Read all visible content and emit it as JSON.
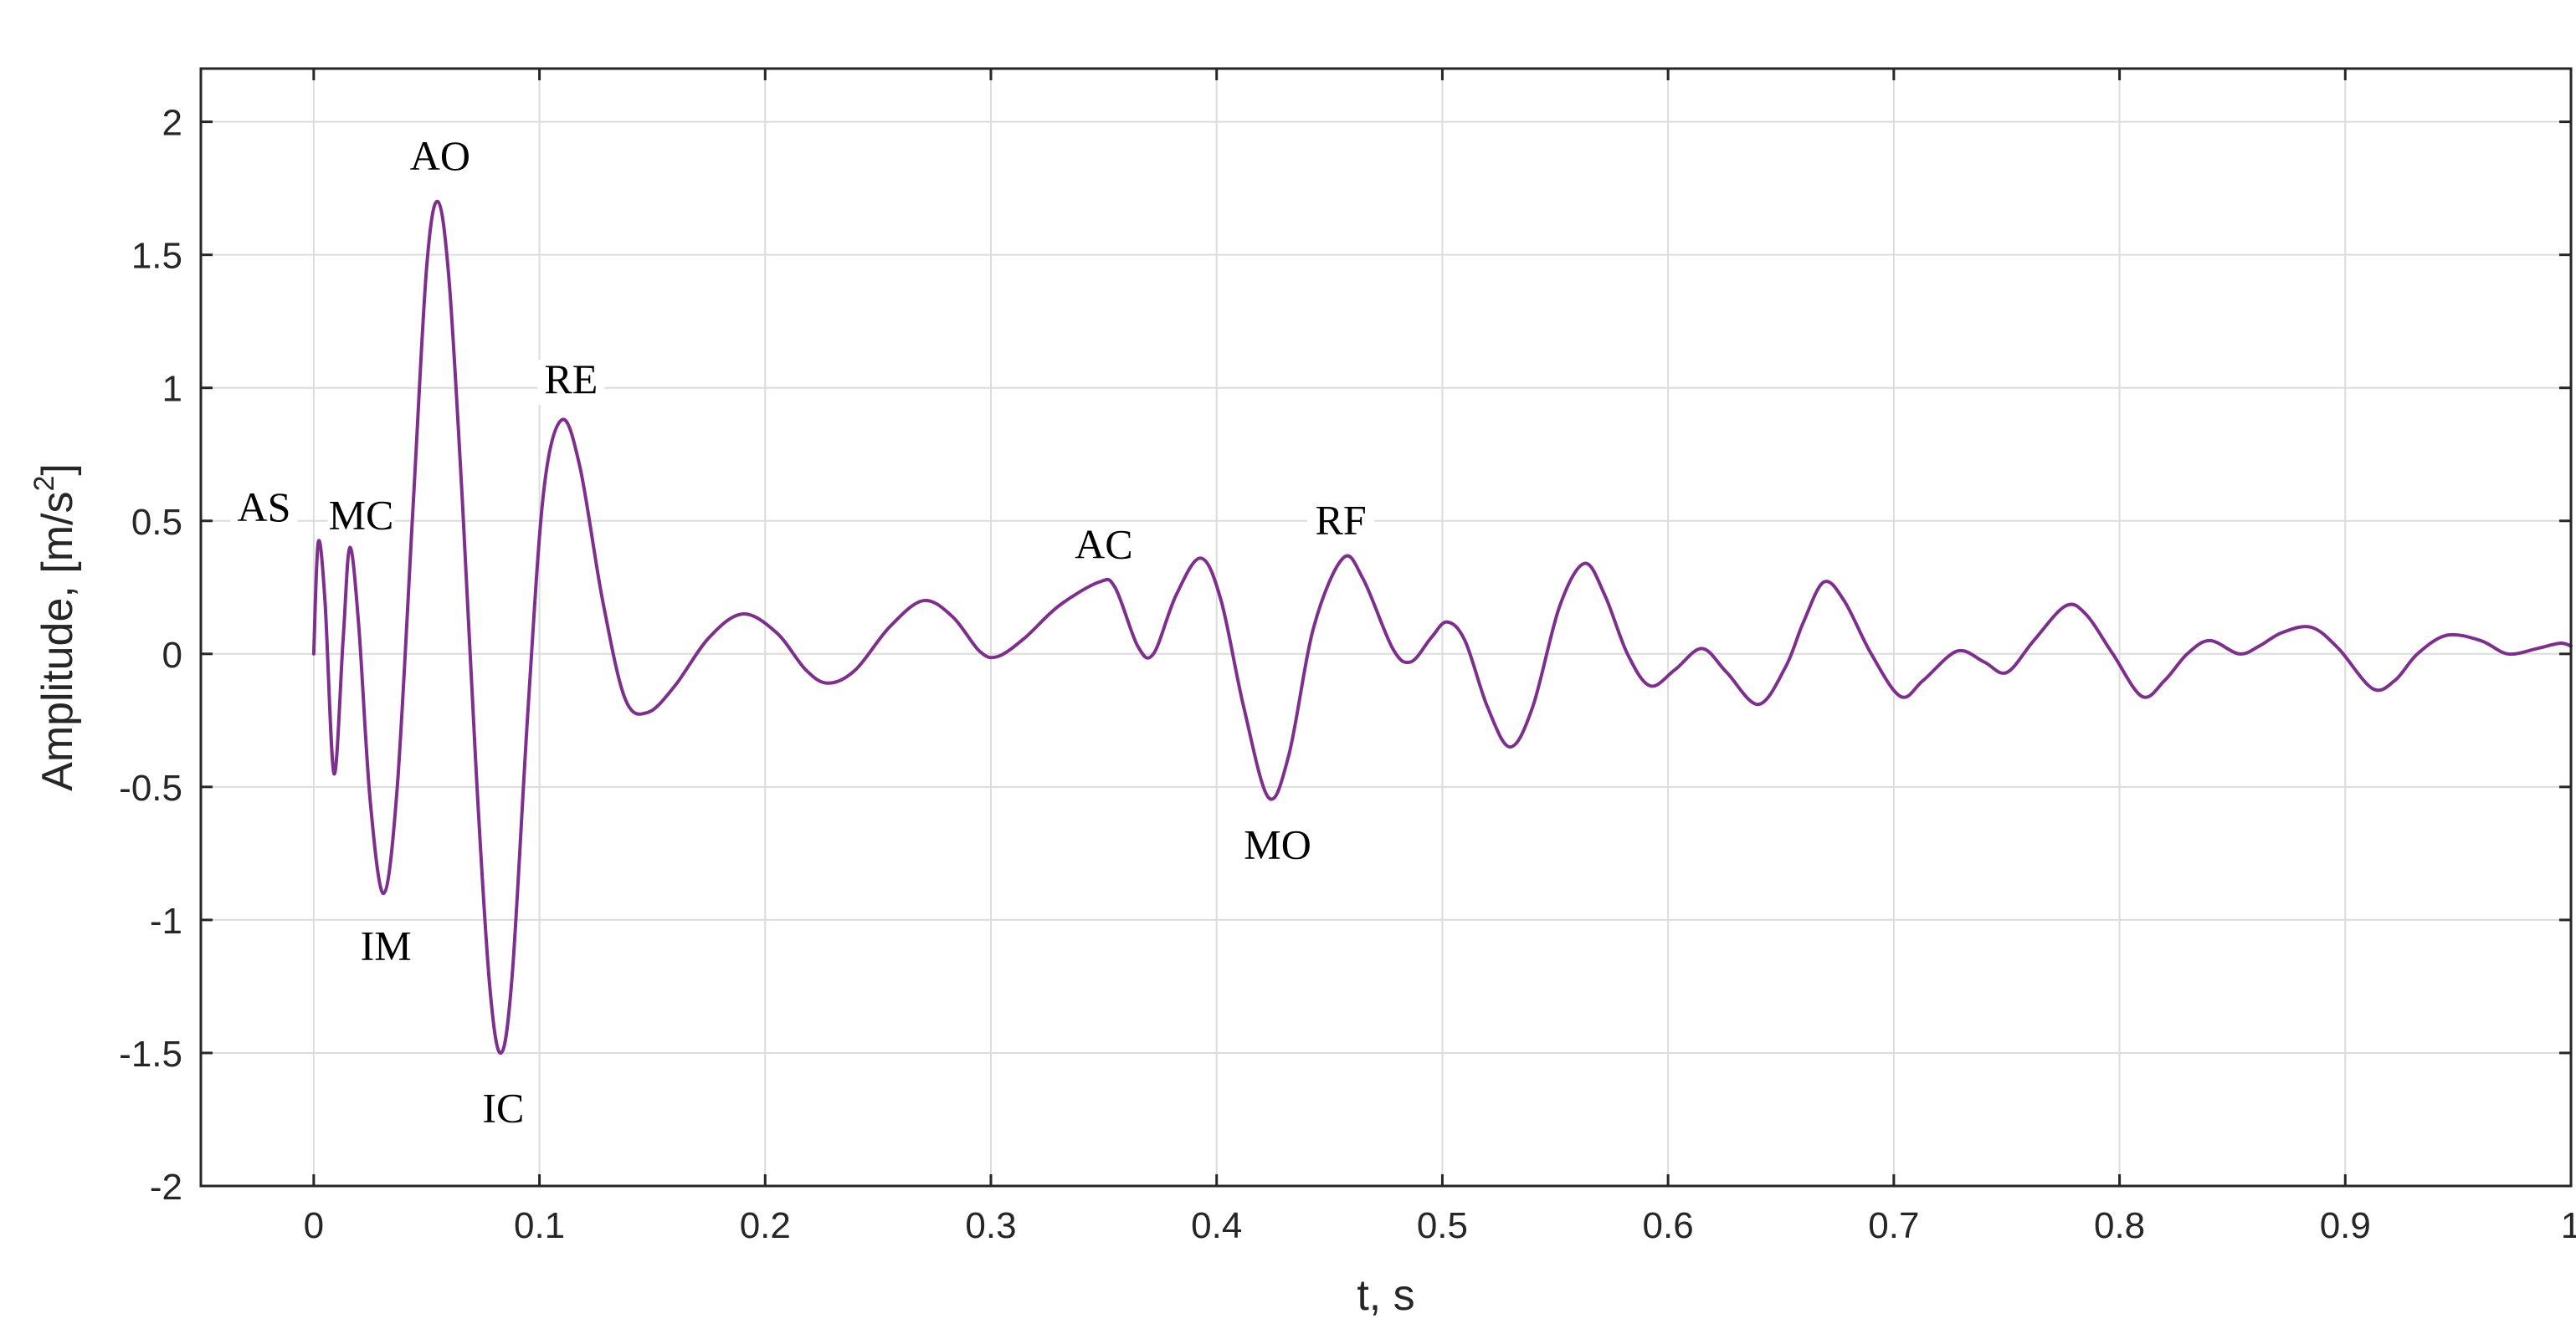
{
  "chart_data": {
    "type": "line",
    "xlabel": "t, s",
    "ylabel": "Amplitude, [m/s",
    "ylabel_sup": "2",
    "ylabel_close": "]",
    "xlim": [
      -0.05,
      1.0
    ],
    "ylim": [
      -2,
      2.2
    ],
    "xticks": [
      0,
      0.1,
      0.2,
      0.3,
      0.4,
      0.5,
      0.6,
      0.7,
      0.8,
      0.9,
      1
    ],
    "xtick_labels": [
      "0",
      "0.1",
      "0.2",
      "0.3",
      "0.4",
      "0.5",
      "0.6",
      "0.7",
      "0.8",
      "0.9",
      "1"
    ],
    "yticks": [
      2,
      1.5,
      1,
      0.5,
      0,
      -0.5,
      -1,
      -1.5,
      -2
    ],
    "ytick_labels": [
      "2",
      "1.5",
      "1",
      "0.5",
      "0",
      "-0.5",
      "-1",
      "-1.5",
      "-2"
    ],
    "grid": true,
    "line_color": "#7E2F8E",
    "series": [
      {
        "points": [
          [
            0.0,
            0.0
          ],
          [
            0.002,
            0.42
          ],
          [
            0.005,
            0.2
          ],
          [
            0.009,
            -0.45
          ],
          [
            0.013,
            0.05
          ],
          [
            0.016,
            0.4
          ],
          [
            0.02,
            0.1
          ],
          [
            0.025,
            -0.55
          ],
          [
            0.031,
            -0.9
          ],
          [
            0.037,
            -0.5
          ],
          [
            0.044,
            0.55
          ],
          [
            0.05,
            1.45
          ],
          [
            0.055,
            1.7
          ],
          [
            0.06,
            1.4
          ],
          [
            0.066,
            0.55
          ],
          [
            0.072,
            -0.45
          ],
          [
            0.078,
            -1.25
          ],
          [
            0.083,
            -1.5
          ],
          [
            0.088,
            -1.2
          ],
          [
            0.095,
            -0.2
          ],
          [
            0.102,
            0.62
          ],
          [
            0.11,
            0.88
          ],
          [
            0.118,
            0.7
          ],
          [
            0.128,
            0.2
          ],
          [
            0.138,
            -0.17
          ],
          [
            0.148,
            -0.22
          ],
          [
            0.16,
            -0.12
          ],
          [
            0.175,
            0.06
          ],
          [
            0.19,
            0.15
          ],
          [
            0.205,
            0.08
          ],
          [
            0.218,
            -0.06
          ],
          [
            0.228,
            -0.11
          ],
          [
            0.24,
            -0.06
          ],
          [
            0.255,
            0.1
          ],
          [
            0.27,
            0.2
          ],
          [
            0.283,
            0.14
          ],
          [
            0.295,
            0.01
          ],
          [
            0.303,
            -0.01
          ],
          [
            0.315,
            0.06
          ],
          [
            0.33,
            0.18
          ],
          [
            0.348,
            0.27
          ],
          [
            0.355,
            0.25
          ],
          [
            0.365,
            0.03
          ],
          [
            0.372,
            0.0
          ],
          [
            0.382,
            0.22
          ],
          [
            0.393,
            0.36
          ],
          [
            0.402,
            0.2
          ],
          [
            0.412,
            -0.2
          ],
          [
            0.423,
            -0.54
          ],
          [
            0.432,
            -0.38
          ],
          [
            0.443,
            0.1
          ],
          [
            0.456,
            0.36
          ],
          [
            0.465,
            0.28
          ],
          [
            0.478,
            0.02
          ],
          [
            0.486,
            -0.03
          ],
          [
            0.495,
            0.06
          ],
          [
            0.502,
            0.12
          ],
          [
            0.51,
            0.05
          ],
          [
            0.52,
            -0.2
          ],
          [
            0.53,
            -0.35
          ],
          [
            0.54,
            -0.2
          ],
          [
            0.552,
            0.18
          ],
          [
            0.563,
            0.34
          ],
          [
            0.572,
            0.22
          ],
          [
            0.582,
            0.0
          ],
          [
            0.592,
            -0.12
          ],
          [
            0.603,
            -0.06
          ],
          [
            0.615,
            0.02
          ],
          [
            0.626,
            -0.07
          ],
          [
            0.64,
            -0.19
          ],
          [
            0.652,
            -0.05
          ],
          [
            0.66,
            0.12
          ],
          [
            0.669,
            0.27
          ],
          [
            0.678,
            0.2
          ],
          [
            0.69,
            0.0
          ],
          [
            0.703,
            -0.16
          ],
          [
            0.713,
            -0.1
          ],
          [
            0.728,
            0.01
          ],
          [
            0.74,
            -0.03
          ],
          [
            0.75,
            -0.07
          ],
          [
            0.762,
            0.05
          ],
          [
            0.776,
            0.18
          ],
          [
            0.785,
            0.15
          ],
          [
            0.797,
            0.0
          ],
          [
            0.81,
            -0.16
          ],
          [
            0.82,
            -0.1
          ],
          [
            0.83,
            0.0
          ],
          [
            0.84,
            0.05
          ],
          [
            0.853,
            0.0
          ],
          [
            0.862,
            0.03
          ],
          [
            0.872,
            0.08
          ],
          [
            0.885,
            0.1
          ],
          [
            0.897,
            0.02
          ],
          [
            0.912,
            -0.13
          ],
          [
            0.922,
            -0.1
          ],
          [
            0.932,
            0.0
          ],
          [
            0.945,
            0.07
          ],
          [
            0.96,
            0.05
          ],
          [
            0.972,
            0.0
          ],
          [
            0.985,
            0.02
          ],
          [
            0.995,
            0.04
          ],
          [
            1.0,
            0.03
          ]
        ]
      }
    ],
    "annotations": [
      {
        "text": "AS",
        "x": -0.022,
        "y": 0.5
      },
      {
        "text": "MC",
        "x": 0.021,
        "y": 0.47
      },
      {
        "text": "AO",
        "x": 0.056,
        "y": 1.82
      },
      {
        "text": "RE",
        "x": 0.114,
        "y": 0.98
      },
      {
        "text": "IM",
        "x": 0.032,
        "y": -1.15
      },
      {
        "text": "IC",
        "x": 0.084,
        "y": -1.76
      },
      {
        "text": "AC",
        "x": 0.35,
        "y": 0.36
      },
      {
        "text": "RF",
        "x": 0.455,
        "y": 0.45
      },
      {
        "text": "MO",
        "x": 0.427,
        "y": -0.77
      }
    ]
  }
}
